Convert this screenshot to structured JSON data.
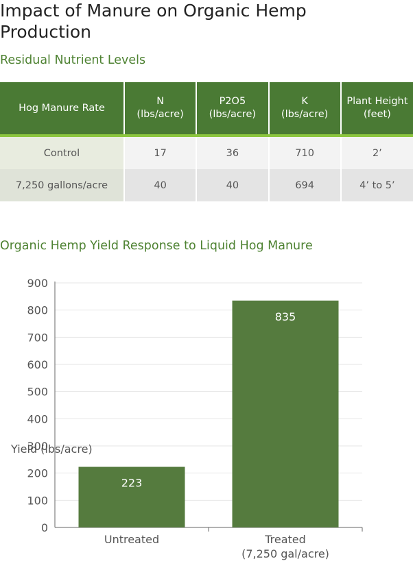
{
  "title": "Impact of Manure on Organic Hemp Production",
  "table_section_title": "Residual Nutrient Levels",
  "table": {
    "headers": [
      "Hog Manure Rate",
      "N\n(lbs/acre)",
      "P2O5\n(lbs/acre)",
      "K\n(lbs/acre)",
      "Plant Height\n(feet)"
    ],
    "rows": [
      [
        "Control",
        "17",
        "36",
        "710",
        "2’"
      ],
      [
        "7,250 gallons/acre",
        "40",
        "40",
        "694",
        "4’ to 5’"
      ]
    ]
  },
  "chart_section_title": "Organic Hemp Yield Response to Liquid Hog Manure",
  "chart_data": {
    "type": "bar",
    "categories": [
      "Untreated",
      "Treated\n(7,250 gal/acre)"
    ],
    "values": [
      223,
      835
    ],
    "ylabel": "Yield (lbs/acre)",
    "ylim": [
      0,
      900
    ],
    "yticks": [
      0,
      100,
      200,
      300,
      400,
      500,
      600,
      700,
      800,
      900
    ],
    "data_labels": [
      "223",
      "835"
    ],
    "grid": true,
    "bar_color": "#557b3e",
    "label_color": "#ffffff"
  },
  "colors": {
    "accent": "#4e8232",
    "header_bg": "#4a7a34",
    "header_rule": "#8cc63f"
  }
}
